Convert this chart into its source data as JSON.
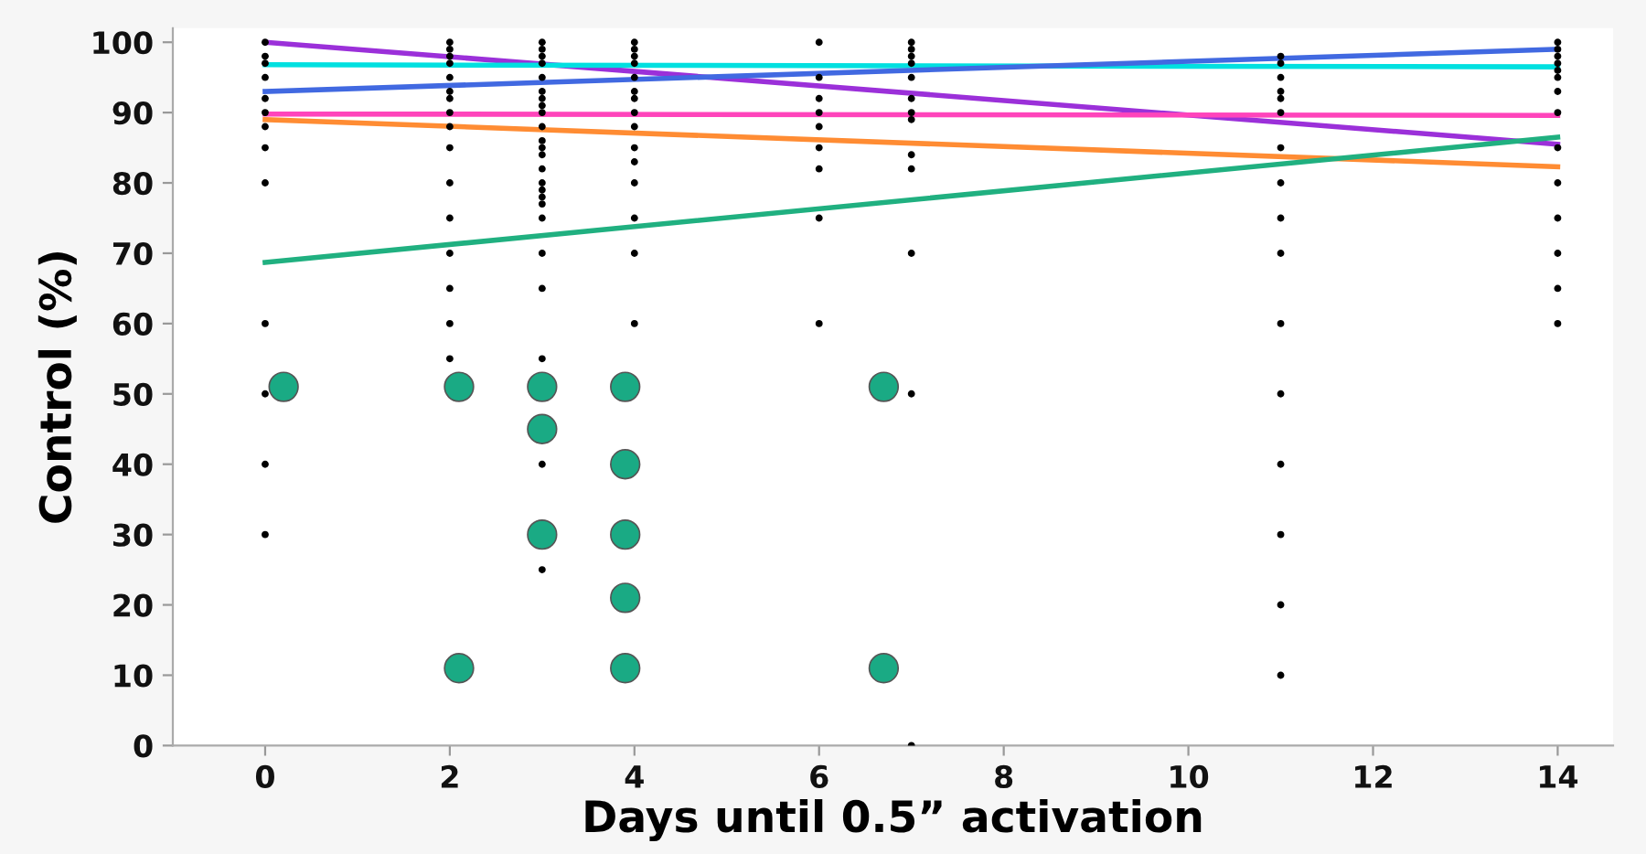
{
  "chart_data": {
    "type": "scatter",
    "xlabel": "Days until 0.5” activation",
    "ylabel": "Control (%)",
    "xlim": [
      -1,
      14.6
    ],
    "ylim": [
      0,
      102
    ],
    "xticks": [
      0,
      2,
      4,
      6,
      8,
      10,
      12,
      14
    ],
    "yticks": [
      0,
      10,
      20,
      30,
      40,
      50,
      60,
      70,
      80,
      90,
      100
    ],
    "grid": false,
    "legend": false,
    "series": [
      {
        "marker": "circle",
        "color": "#000000",
        "x": [
          0,
          0,
          0,
          0,
          0,
          0,
          0,
          0,
          0,
          0,
          0,
          0,
          0,
          2,
          2,
          2,
          2,
          2,
          2,
          2,
          2,
          2,
          2,
          2,
          2,
          2,
          2,
          2,
          2,
          3,
          3,
          3,
          3,
          3,
          3,
          3,
          3,
          3,
          3,
          3,
          3,
          3,
          3,
          3,
          3,
          3,
          3,
          3,
          3,
          3,
          3,
          3,
          3,
          4,
          4,
          4,
          4,
          4,
          4,
          4,
          4,
          4,
          4,
          4,
          4,
          4,
          4,
          4,
          6,
          6,
          6,
          6,
          6,
          6,
          6,
          6,
          6,
          7,
          7,
          7,
          7,
          7,
          7,
          7,
          7,
          7,
          7,
          7,
          7,
          7,
          11,
          11,
          11,
          11,
          11,
          11,
          11,
          11,
          11,
          11,
          11,
          11,
          11,
          11,
          11,
          11,
          14,
          14,
          14,
          14,
          14,
          14,
          14,
          14,
          14,
          14,
          14,
          14,
          14,
          14
        ],
        "values": [
          100,
          98,
          97,
          95,
          92,
          90,
          88,
          85,
          80,
          60,
          50,
          40,
          30,
          100,
          99,
          98,
          97,
          95,
          93,
          92,
          90,
          88,
          85,
          80,
          75,
          70,
          65,
          60,
          55,
          100,
          99,
          98,
          97,
          95,
          93,
          92,
          91,
          90,
          88,
          86,
          85,
          84,
          82,
          80,
          79,
          78,
          77,
          75,
          70,
          65,
          55,
          40,
          25,
          100,
          99,
          98,
          97,
          95,
          93,
          92,
          90,
          88,
          85,
          83,
          80,
          75,
          70,
          60,
          100,
          95,
          92,
          90,
          88,
          85,
          82,
          75,
          60,
          100,
          99,
          98,
          97,
          95,
          92,
          90,
          89,
          84,
          82,
          70,
          50,
          0,
          98,
          97,
          95,
          93,
          92,
          90,
          85,
          80,
          75,
          70,
          60,
          50,
          40,
          30,
          20,
          10,
          100,
          99,
          98,
          97,
          96,
          95,
          93,
          90,
          85,
          80,
          75,
          70,
          65,
          60
        ]
      },
      {
        "marker": "circle",
        "color": "#1aaa84",
        "x": [
          0.2,
          2.1,
          3,
          3,
          3,
          3.9,
          3.9,
          3.9,
          3.9,
          3.9,
          2.1,
          6.7,
          6.7
        ],
        "values": [
          51,
          51,
          51,
          45,
          30,
          51,
          40,
          30,
          21,
          11,
          11,
          51,
          11
        ]
      },
      {
        "type": "line",
        "color": "#9b30d9",
        "marker": "none",
        "x": [
          0,
          14
        ],
        "values": [
          100,
          85.5
        ]
      },
      {
        "type": "line",
        "color": "#00e0e0",
        "marker": "none",
        "x": [
          0,
          14
        ],
        "values": [
          96.8,
          96.5
        ]
      },
      {
        "type": "line",
        "color": "#4169e1",
        "marker": "none",
        "x": [
          0,
          14
        ],
        "values": [
          93,
          99
        ]
      },
      {
        "type": "line",
        "color": "#ff44bb",
        "marker": "none",
        "x": [
          0,
          14
        ],
        "values": [
          89.8,
          89.6
        ]
      },
      {
        "type": "line",
        "color": "#ff8c33",
        "marker": "none",
        "x": [
          0,
          14
        ],
        "values": [
          89,
          82.3
        ]
      },
      {
        "type": "line",
        "color": "#20b080",
        "marker": "none",
        "x": [
          0,
          14
        ],
        "values": [
          68.7,
          86.5
        ]
      }
    ]
  }
}
